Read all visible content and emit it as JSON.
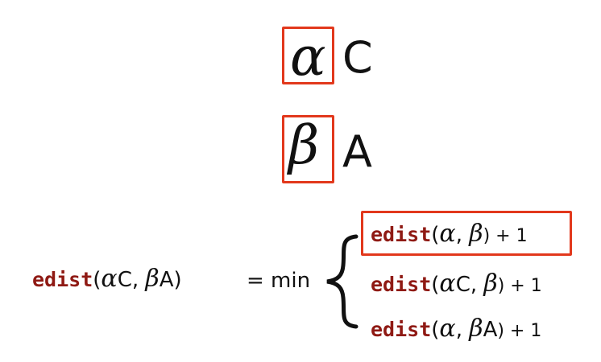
{
  "symbols": {
    "row1": {
      "greek": "α",
      "letter": "C"
    },
    "row2": {
      "greek": "β",
      "letter": "A"
    }
  },
  "equation": {
    "lhs": {
      "fn": "edist",
      "open": "(",
      "arg1_greek": "α",
      "arg1_letter": "C",
      "comma": ", ",
      "arg2_greek": "β",
      "arg2_letter": "A",
      "close": ")"
    },
    "equals_min": "= min",
    "cases": [
      {
        "fn": "edist",
        "open": "(",
        "a": "α",
        "a_suffix": "",
        "comma": ", ",
        "b": "β",
        "b_suffix": "",
        "tail": ") + 1"
      },
      {
        "fn": "edist",
        "open": "(",
        "a": "α",
        "a_suffix": "C",
        "comma": ", ",
        "b": "β",
        "b_suffix": "",
        "tail": ") + 1"
      },
      {
        "fn": "edist",
        "open": "(",
        "a": "α",
        "a_suffix": "",
        "comma": ", ",
        "b": "β",
        "b_suffix": "A",
        "tail": ") + 1"
      }
    ]
  },
  "colors": {
    "highlight": "#e2381c",
    "function_name": "#8f1a14",
    "text": "#111111"
  }
}
